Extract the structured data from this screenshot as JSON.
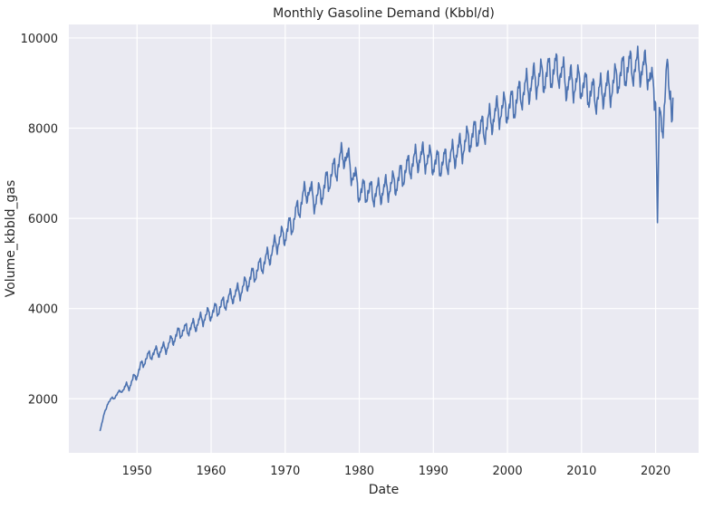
{
  "chart_data": {
    "type": "line",
    "title": "Monthly Gasoline Demand (Kbbl/d)",
    "xlabel": "Date",
    "ylabel": "Volume_kbbld_gas",
    "xlim": [
      1940.8,
      2025.8
    ],
    "ylim": [
      800,
      10300
    ],
    "x_ticks": [
      1950,
      1960,
      1970,
      1980,
      1990,
      2000,
      2010,
      2020
    ],
    "y_ticks": [
      2000,
      4000,
      6000,
      8000,
      10000
    ],
    "x_tick_labels": [
      "1950",
      "1960",
      "1970",
      "1980",
      "1990",
      "2000",
      "2010",
      "2020"
    ],
    "y_tick_labels": [
      "2000",
      "4000",
      "6000",
      "8000",
      "10000"
    ],
    "grid": true,
    "colors": {
      "background": "#eaeaf2",
      "grid": "#ffffff",
      "line": "#4c72b0",
      "text": "#262626"
    },
    "series": [
      {
        "frequency": "monthly",
        "anchors": [
          [
            1945.0,
            1300
          ],
          [
            1946.0,
            1900
          ],
          [
            1947.0,
            2050
          ],
          [
            1948.0,
            2200
          ],
          [
            1949.0,
            2300
          ],
          [
            1950.0,
            2550
          ],
          [
            1951.0,
            2850
          ],
          [
            1952.0,
            3000
          ],
          [
            1953.0,
            3050
          ],
          [
            1954.0,
            3150
          ],
          [
            1955.0,
            3350
          ],
          [
            1956.0,
            3500
          ],
          [
            1957.0,
            3550
          ],
          [
            1958.0,
            3650
          ],
          [
            1959.0,
            3800
          ],
          [
            1960.0,
            3900
          ],
          [
            1961.0,
            4000
          ],
          [
            1962.0,
            4150
          ],
          [
            1963.0,
            4300
          ],
          [
            1964.0,
            4400
          ],
          [
            1965.0,
            4600
          ],
          [
            1966.0,
            4800
          ],
          [
            1967.0,
            5000
          ],
          [
            1968.0,
            5200
          ],
          [
            1969.0,
            5500
          ],
          [
            1970.0,
            5650
          ],
          [
            1971.0,
            5900
          ],
          [
            1972.0,
            6300
          ],
          [
            1973.0,
            6650
          ],
          [
            1974.0,
            6400
          ],
          [
            1975.0,
            6600
          ],
          [
            1976.0,
            6900
          ],
          [
            1977.0,
            7150
          ],
          [
            1978.0,
            7450
          ],
          [
            1979.0,
            7050
          ],
          [
            1980.0,
            6600
          ],
          [
            1981.0,
            6600
          ],
          [
            1982.0,
            6550
          ],
          [
            1983.0,
            6600
          ],
          [
            1984.0,
            6700
          ],
          [
            1985.0,
            6800
          ],
          [
            1986.0,
            7000
          ],
          [
            1987.0,
            7200
          ],
          [
            1988.0,
            7350
          ],
          [
            1989.0,
            7350
          ],
          [
            1990.0,
            7250
          ],
          [
            1991.0,
            7200
          ],
          [
            1992.0,
            7300
          ],
          [
            1993.0,
            7450
          ],
          [
            1994.0,
            7600
          ],
          [
            1995.0,
            7800
          ],
          [
            1996.0,
            7900
          ],
          [
            1997.0,
            8000
          ],
          [
            1998.0,
            8250
          ],
          [
            1999.0,
            8400
          ],
          [
            2000.0,
            8450
          ],
          [
            2001.0,
            8550
          ],
          [
            2002.0,
            8800
          ],
          [
            2003.0,
            8950
          ],
          [
            2004.0,
            9100
          ],
          [
            2005.0,
            9150
          ],
          [
            2006.0,
            9250
          ],
          [
            2007.0,
            9300
          ],
          [
            2008.0,
            9000
          ],
          [
            2009.0,
            9000
          ],
          [
            2010.0,
            9000
          ],
          [
            2011.0,
            8800
          ],
          [
            2012.0,
            8700
          ],
          [
            2013.0,
            8850
          ],
          [
            2014.0,
            8900
          ],
          [
            2015.0,
            9150
          ],
          [
            2016.0,
            9300
          ],
          [
            2017.0,
            9350
          ],
          [
            2018.0,
            9350
          ],
          [
            2019.0,
            9300
          ],
          [
            2020.0,
            8600
          ],
          [
            2020.25,
            5900
          ],
          [
            2020.5,
            8400
          ],
          [
            2021.0,
            8100
          ],
          [
            2021.5,
            9200
          ],
          [
            2022.0,
            8900
          ],
          [
            2022.2,
            8000
          ],
          [
            2022.4,
            8800
          ]
        ],
        "seasonal_amplitude": 0.045
      }
    ]
  }
}
